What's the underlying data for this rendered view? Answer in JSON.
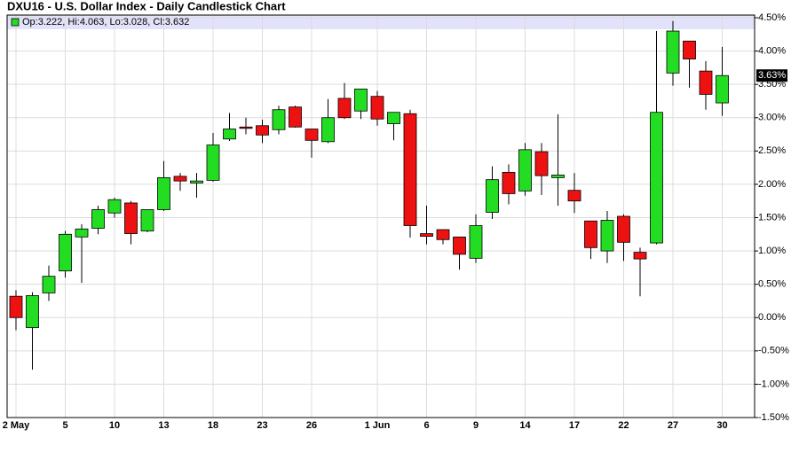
{
  "chart_data": {
    "type": "candlestick",
    "title": "DXU16 - U.S. Dollar Index - Daily Candlestick Chart",
    "categories": [
      "2 May",
      null,
      null,
      "5",
      null,
      null,
      "10",
      null,
      null,
      "13",
      null,
      null,
      "18",
      null,
      null,
      "23",
      null,
      null,
      "26",
      null,
      null,
      null,
      "1 Jun",
      null,
      null,
      "6",
      null,
      null,
      "9",
      null,
      null,
      "14",
      null,
      null,
      "17",
      null,
      null,
      "22",
      null,
      null,
      "27",
      null,
      null,
      "30"
    ],
    "series": [
      {
        "name": "Op:3.222, Hi:4.063, Lo:3.028, Cl:3.632",
        "up_color": "#22dd22",
        "down_color": "#ee1111",
        "open": [
          0.32,
          -0.15,
          0.37,
          0.7,
          1.21,
          1.34,
          1.57,
          1.72,
          1.3,
          1.62,
          2.12,
          2.02,
          2.06,
          2.68,
          2.86,
          2.88,
          2.82,
          3.16,
          2.83,
          2.64,
          3.29,
          3.1,
          3.32,
          2.91,
          3.06,
          1.26,
          1.32,
          1.21,
          0.89,
          1.58,
          2.18,
          1.9,
          2.49,
          2.1,
          1.91,
          1.45,
          1.0,
          1.52,
          0.98,
          1.12,
          3.67,
          4.15,
          3.7,
          3.222
        ],
        "high": [
          0.41,
          0.38,
          0.78,
          1.3,
          1.4,
          1.68,
          1.8,
          1.75,
          1.62,
          2.35,
          2.17,
          2.17,
          2.77,
          3.07,
          3.0,
          2.97,
          3.18,
          3.18,
          2.83,
          3.28,
          3.52,
          3.43,
          3.4,
          3.08,
          3.12,
          1.68,
          1.32,
          1.21,
          1.55,
          2.27,
          2.3,
          2.62,
          2.62,
          3.05,
          2.17,
          1.45,
          1.6,
          1.55,
          1.05,
          4.3,
          4.45,
          4.15,
          3.85,
          4.063
        ],
        "low": [
          -0.19,
          -0.78,
          0.25,
          0.6,
          0.52,
          1.25,
          1.5,
          1.1,
          1.28,
          1.6,
          1.9,
          1.8,
          2.04,
          2.65,
          2.75,
          2.62,
          2.75,
          2.85,
          2.4,
          2.62,
          2.98,
          2.98,
          2.88,
          2.66,
          1.2,
          1.1,
          1.1,
          0.72,
          0.82,
          1.48,
          1.7,
          1.83,
          1.84,
          1.68,
          1.57,
          0.88,
          0.82,
          0.85,
          0.32,
          1.1,
          3.48,
          3.45,
          3.12,
          3.028
        ],
        "close": [
          0.0,
          0.33,
          0.62,
          1.25,
          1.33,
          1.62,
          1.77,
          1.26,
          1.62,
          2.1,
          2.05,
          2.05,
          2.59,
          2.83,
          2.84,
          2.74,
          3.12,
          2.86,
          2.66,
          3.0,
          3.0,
          3.43,
          2.98,
          3.08,
          1.38,
          1.22,
          1.17,
          0.95,
          1.38,
          2.07,
          1.86,
          2.52,
          2.13,
          2.14,
          1.75,
          1.05,
          1.46,
          1.13,
          0.88,
          3.08,
          4.3,
          3.88,
          3.35,
          3.632
        ],
        "last_label": "3.63%"
      }
    ],
    "ylim": [
      -1.5,
      4.5
    ],
    "yticks": [
      {
        "value": -1.5,
        "label": "-1.50%"
      },
      {
        "value": -1.0,
        "label": "-1.00%"
      },
      {
        "value": -0.5,
        "label": "-0.50%"
      },
      {
        "value": 0,
        "label": "0.00%"
      },
      {
        "value": 0.5,
        "label": "0.50%"
      },
      {
        "value": 1.0,
        "label": "1.00%"
      },
      {
        "value": 1.5,
        "label": "1.50%"
      },
      {
        "value": 2.0,
        "label": "2.00%"
      },
      {
        "value": 2.5,
        "label": "2.50%"
      },
      {
        "value": 3.0,
        "label": "3.00%"
      },
      {
        "value": 3.5,
        "label": "3.50%"
      },
      {
        "value": 4.0,
        "label": "4.00%"
      },
      {
        "value": 4.5,
        "label": "4.50%"
      }
    ],
    "grid": true
  }
}
